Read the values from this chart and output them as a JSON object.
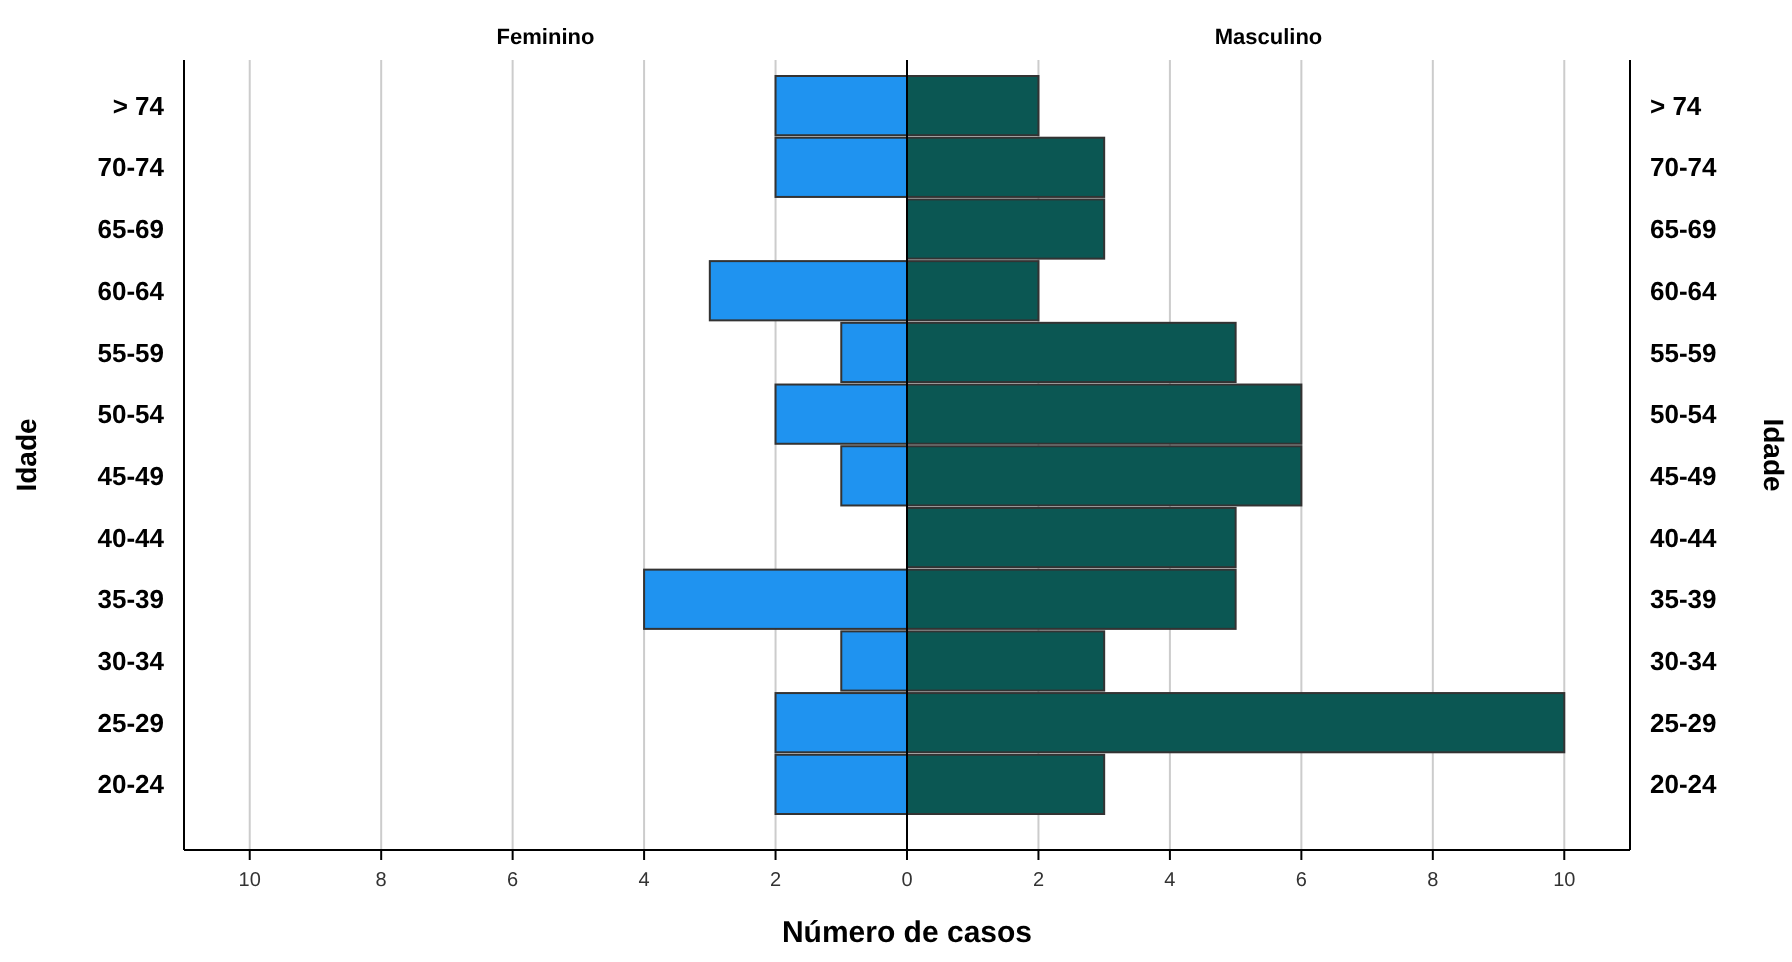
{
  "chart_data": [
    {
      "type": "bar",
      "orientation": "horizontal",
      "title": "Feminino",
      "ylabel": "Idade",
      "categories": [
        "> 74",
        "70-74",
        "65-69",
        "60-64",
        "55-59",
        "50-54",
        "45-49",
        "40-44",
        "35-39",
        "30-34",
        "25-29",
        "20-24"
      ],
      "values": [
        2,
        2,
        null,
        3,
        1,
        2,
        1,
        null,
        4,
        1,
        2,
        2
      ],
      "color": "#1f93f0",
      "xlim": [
        11,
        0
      ],
      "xticks": [
        10,
        8,
        6,
        4,
        2
      ],
      "grid": "x"
    },
    {
      "type": "bar",
      "orientation": "horizontal",
      "title": "Masculino",
      "xlabel": "Número de casos",
      "y2label": "Idade",
      "categories": [
        "> 74",
        "70-74",
        "65-69",
        "60-64",
        "55-59",
        "50-54",
        "45-49",
        "40-44",
        "35-39",
        "30-34",
        "25-29",
        "20-24"
      ],
      "values": [
        2,
        3,
        3,
        2,
        5,
        6,
        6,
        5,
        5,
        3,
        10,
        3
      ],
      "color": "#0b5753",
      "xlim": [
        0,
        11
      ],
      "xticks": [
        0,
        2,
        4,
        6,
        8,
        10
      ],
      "grid": "x"
    }
  ]
}
